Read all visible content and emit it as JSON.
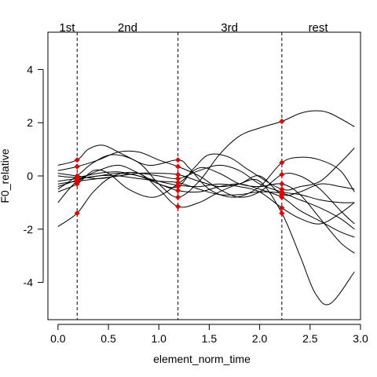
{
  "chart_data": {
    "type": "line",
    "xlabel": "element_norm_time",
    "ylabel": "F0_relative",
    "xlim": [
      -0.1,
      3.0
    ],
    "ylim": [
      -5.4,
      5.4
    ],
    "x_ticks": [
      0.0,
      0.5,
      1.0,
      1.5,
      2.0,
      2.5,
      3.0
    ],
    "x_tick_labels": [
      "0.0",
      "0.5",
      "1.0",
      "1.5",
      "2.0",
      "2.5",
      "3.0"
    ],
    "y_ticks": [
      -4,
      -2,
      0,
      2,
      4
    ],
    "y_tick_labels": [
      "-4",
      "-2",
      "0",
      "2",
      "4"
    ],
    "grid": false,
    "boundaries": [
      0.19,
      1.19,
      2.22
    ],
    "segment_labels": [
      {
        "text": "1st",
        "x": 0.09
      },
      {
        "text": "2nd",
        "x": 0.69
      },
      {
        "text": "3rd",
        "x": 1.7
      },
      {
        "text": "rest",
        "x": 2.58
      }
    ],
    "series": [
      {
        "x": [
          0.0,
          0.19,
          0.35,
          0.55,
          0.8,
          1.0,
          1.19,
          1.4,
          1.6,
          1.8,
          2.0,
          2.22,
          2.4,
          2.55,
          2.7,
          2.94
        ],
        "y": [
          -1.9,
          -1.4,
          -0.6,
          0.0,
          0.1,
          -0.5,
          -1.15,
          -1.0,
          -0.6,
          -0.3,
          -0.2,
          -1.4,
          -3.0,
          -4.4,
          -4.8,
          -3.6
        ]
      },
      {
        "x": [
          0.0,
          0.19,
          0.35,
          0.55,
          0.8,
          1.0,
          1.19,
          1.4,
          1.6,
          1.8,
          2.0,
          2.22,
          2.4,
          2.55,
          2.7,
          2.94
        ],
        "y": [
          -0.5,
          0.0,
          0.5,
          0.8,
          0.5,
          -0.3,
          -0.8,
          -0.2,
          0.8,
          1.5,
          1.8,
          2.05,
          2.35,
          2.45,
          2.35,
          1.85
        ]
      },
      {
        "x": [
          0.0,
          0.19,
          0.3,
          0.45,
          0.65,
          0.9,
          1.19,
          1.3,
          1.5,
          1.75,
          2.0,
          2.22,
          2.4,
          2.6,
          2.8,
          2.94
        ],
        "y": [
          0.4,
          0.6,
          1.0,
          1.15,
          0.8,
          0.4,
          0.6,
          0.3,
          -0.5,
          -0.8,
          -0.4,
          0.5,
          0.7,
          0.6,
          0.2,
          -0.6
        ]
      },
      {
        "x": [
          0.0,
          0.19,
          0.4,
          0.6,
          0.8,
          1.0,
          1.19,
          1.4,
          1.6,
          1.8,
          2.0,
          2.22,
          2.4,
          2.6,
          2.8,
          2.94
        ],
        "y": [
          0.2,
          0.35,
          0.6,
          0.9,
          0.9,
          0.6,
          0.35,
          0.0,
          -0.5,
          -0.8,
          -0.6,
          0.05,
          0.0,
          -0.5,
          -1.3,
          -1.8
        ]
      },
      {
        "x": [
          0.0,
          0.19,
          0.4,
          0.6,
          0.8,
          1.0,
          1.19,
          1.35,
          1.5,
          1.7,
          1.9,
          2.22,
          2.4,
          2.6,
          2.8,
          2.94
        ],
        "y": [
          -0.4,
          -0.15,
          0.2,
          0.4,
          0.1,
          -0.3,
          -0.4,
          0.3,
          0.8,
          0.7,
          0.2,
          -0.5,
          -0.4,
          -0.2,
          0.5,
          1.05
        ]
      },
      {
        "x": [
          0.0,
          0.19,
          0.4,
          0.6,
          0.8,
          1.0,
          1.19,
          1.4,
          1.6,
          1.8,
          2.0,
          2.22,
          2.4,
          2.6,
          2.8,
          2.94
        ],
        "y": [
          -1.0,
          -0.2,
          0.0,
          0.0,
          -0.1,
          -0.2,
          -0.25,
          -0.5,
          -0.7,
          -0.7,
          -0.6,
          -0.65,
          -0.9,
          -1.2,
          -1.6,
          -2.0
        ]
      },
      {
        "x": [
          0.0,
          0.19,
          0.4,
          0.6,
          0.8,
          1.0,
          1.19,
          1.4,
          1.6,
          1.8,
          2.0,
          2.22,
          2.4,
          2.6,
          2.8,
          2.94
        ],
        "y": [
          -0.2,
          -0.1,
          0.0,
          0.1,
          0.0,
          -0.3,
          -0.55,
          -0.6,
          -0.4,
          -0.3,
          -0.5,
          -0.8,
          -1.3,
          -1.7,
          -2.1,
          -2.3
        ]
      },
      {
        "x": [
          0.0,
          0.19,
          0.4,
          0.6,
          0.8,
          1.0,
          1.19,
          1.4,
          1.6,
          1.8,
          2.0,
          2.22,
          2.4,
          2.6,
          2.8,
          2.94
        ],
        "y": [
          0.0,
          -0.05,
          0.1,
          0.15,
          0.0,
          -0.2,
          -0.35,
          -0.4,
          -0.3,
          -0.4,
          -0.6,
          -1.2,
          -1.6,
          -1.8,
          -1.4,
          -1.0
        ]
      },
      {
        "x": [
          0.0,
          0.19,
          0.4,
          0.6,
          0.8,
          1.0,
          1.19,
          1.4,
          1.6,
          1.8,
          2.0,
          2.22,
          2.4,
          2.6,
          2.8,
          2.94
        ],
        "y": [
          0.1,
          0.0,
          -0.1,
          0.0,
          0.1,
          0.0,
          -0.1,
          0.2,
          0.4,
          0.2,
          -0.3,
          -0.6,
          -0.7,
          -0.9,
          -1.0,
          -1.0
        ]
      },
      {
        "x": [
          0.0,
          0.19,
          0.35,
          0.5,
          0.7,
          0.95,
          1.19,
          1.4,
          1.6,
          1.8,
          2.0,
          2.22,
          2.4,
          2.6,
          2.8,
          2.94
        ],
        "y": [
          -0.6,
          -0.3,
          0.2,
          0.1,
          -0.5,
          -0.8,
          -0.3,
          0.3,
          0.1,
          -0.3,
          -0.4,
          -0.3,
          -0.7,
          -1.6,
          -2.5,
          -2.9
        ]
      },
      {
        "x": [
          0.0,
          0.19,
          0.4,
          0.6,
          0.8,
          1.0,
          1.19,
          1.4,
          1.6,
          1.8,
          2.0,
          2.22,
          2.4,
          2.6,
          2.8,
          2.94
        ],
        "y": [
          -0.3,
          -0.2,
          -0.1,
          0.0,
          0.1,
          0.1,
          0.05,
          -0.2,
          -0.4,
          -0.3,
          0.0,
          -0.7,
          -0.6,
          -0.3,
          -0.4,
          -0.5
        ]
      }
    ],
    "points": [
      {
        "x": 0.19,
        "y": 0.6
      },
      {
        "x": 0.19,
        "y": 0.35
      },
      {
        "x": 0.19,
        "y": 0.0
      },
      {
        "x": 0.19,
        "y": -0.05
      },
      {
        "x": 0.19,
        "y": -0.1
      },
      {
        "x": 0.19,
        "y": -0.15
      },
      {
        "x": 0.19,
        "y": -0.2
      },
      {
        "x": 0.19,
        "y": -0.3
      },
      {
        "x": 0.19,
        "y": -1.4
      },
      {
        "x": 1.19,
        "y": 0.6
      },
      {
        "x": 1.19,
        "y": 0.35
      },
      {
        "x": 1.19,
        "y": 0.05
      },
      {
        "x": 1.19,
        "y": -0.1
      },
      {
        "x": 1.19,
        "y": -0.25
      },
      {
        "x": 1.19,
        "y": -0.35
      },
      {
        "x": 1.19,
        "y": -0.4
      },
      {
        "x": 1.19,
        "y": -0.55
      },
      {
        "x": 1.19,
        "y": -0.8
      },
      {
        "x": 1.19,
        "y": -1.15
      },
      {
        "x": 2.22,
        "y": 2.05
      },
      {
        "x": 2.22,
        "y": 0.5
      },
      {
        "x": 2.22,
        "y": 0.05
      },
      {
        "x": 2.22,
        "y": -0.3
      },
      {
        "x": 2.22,
        "y": -0.5
      },
      {
        "x": 2.22,
        "y": -0.6
      },
      {
        "x": 2.22,
        "y": -0.65
      },
      {
        "x": 2.22,
        "y": -0.7
      },
      {
        "x": 2.22,
        "y": -0.8
      },
      {
        "x": 2.22,
        "y": -1.2
      },
      {
        "x": 2.22,
        "y": -1.4
      }
    ],
    "colors": {
      "lines": "#000000",
      "points": "#e00000",
      "boundary": "#000000"
    }
  }
}
